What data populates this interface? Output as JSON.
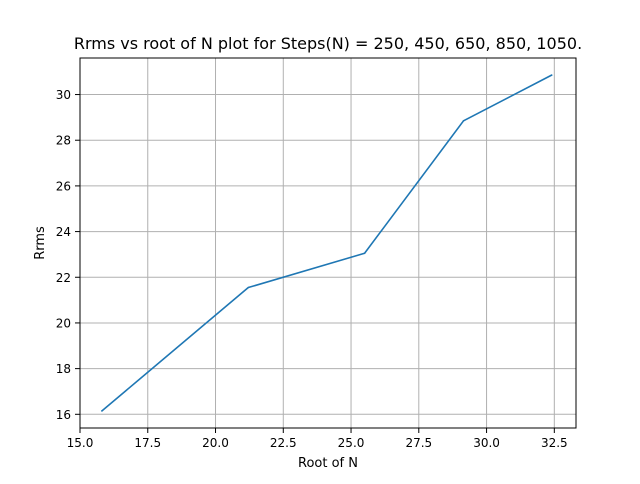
{
  "chart_data": {
    "type": "line",
    "title": "Rrms vs root of N plot for Steps(N) = 250, 450, 650, 850, 1050.",
    "xlabel": "Root of N",
    "ylabel": "Rrms",
    "xlim": [
      15.0,
      33.3
    ],
    "ylim": [
      15.4,
      31.6
    ],
    "grid": true,
    "x_ticks": [
      15.0,
      17.5,
      20.0,
      22.5,
      25.0,
      27.5,
      30.0,
      32.5
    ],
    "x_tick_labels": [
      "15.0",
      "17.5",
      "20.0",
      "22.5",
      "25.0",
      "27.5",
      "30.0",
      "32.5"
    ],
    "y_ticks": [
      16,
      18,
      20,
      22,
      24,
      26,
      28,
      30
    ],
    "y_tick_labels": [
      "16",
      "18",
      "20",
      "22",
      "24",
      "26",
      "28",
      "30"
    ],
    "series": [
      {
        "name": "Rrms",
        "color": "#1f77b4",
        "x": [
          15.81,
          21.21,
          25.5,
          29.15,
          32.4
        ],
        "y": [
          16.15,
          21.55,
          23.05,
          28.85,
          30.85
        ]
      }
    ]
  }
}
